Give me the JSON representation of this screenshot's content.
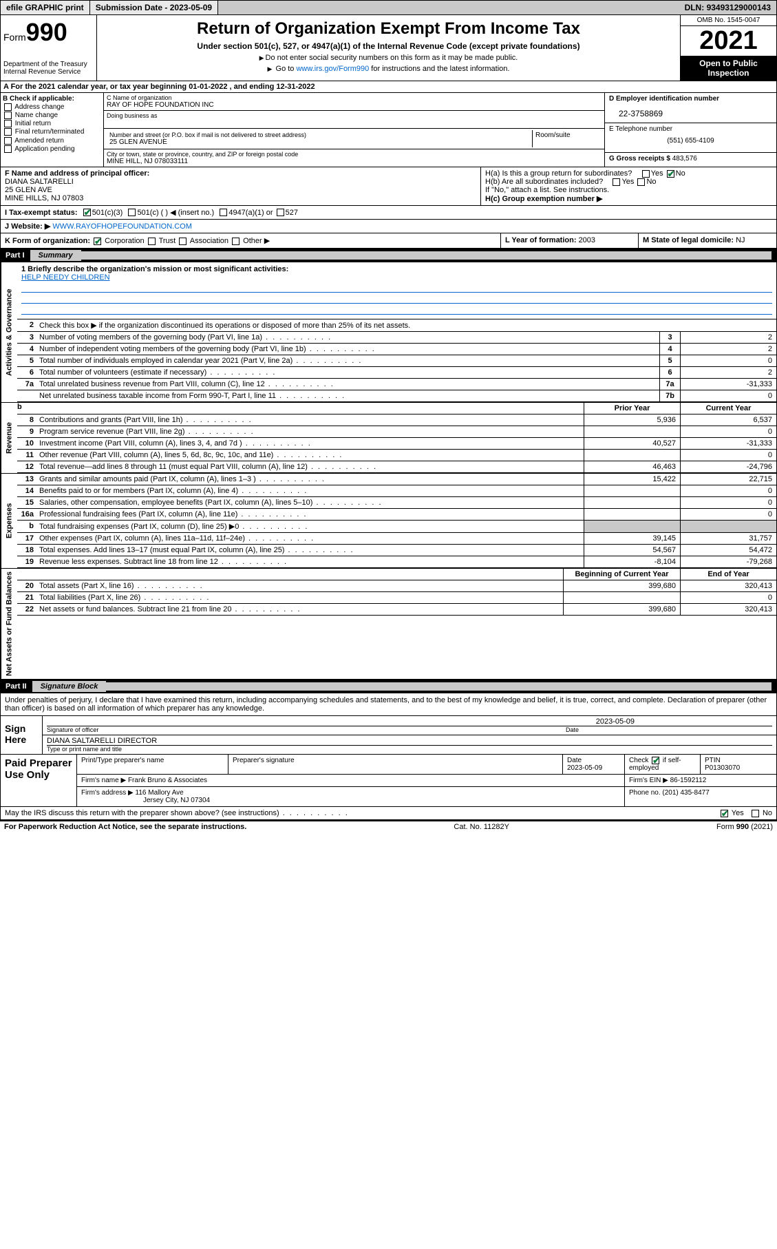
{
  "topbar": {
    "efile": "efile GRAPHIC print",
    "submission_label": "Submission Date - ",
    "submission_date": "2023-05-09",
    "dln_label": "DLN: ",
    "dln": "93493129000143"
  },
  "header": {
    "form_label": "Form",
    "form_num": "990",
    "dept": "Department of the Treasury\nInternal Revenue Service",
    "title": "Return of Organization Exempt From Income Tax",
    "sub": "Under section 501(c), 527, or 4947(a)(1) of the Internal Revenue Code (except private foundations)",
    "l2": "Do not enter social security numbers on this form as it may be made public.",
    "l3_pre": "Go to ",
    "l3_link": "www.irs.gov/Form990",
    "l3_post": " for instructions and the latest information.",
    "omb": "OMB No. 1545-0047",
    "year": "2021",
    "inspect": "Open to Public Inspection"
  },
  "section_a": {
    "text": "A For the 2021 calendar year, or tax year beginning 01-01-2022   , and ending 12-31-2022"
  },
  "col_b": {
    "head": "B Check if applicable:",
    "opts": [
      "Address change",
      "Name change",
      "Initial return",
      "Final return/terminated",
      "Amended return",
      "Application pending"
    ]
  },
  "col_c": {
    "name_label": "C Name of organization",
    "name": "RAY OF HOPE FOUNDATION INC",
    "dba_label": "Doing business as",
    "addr_label": "Number and street (or P.O. box if mail is not delivered to street address)",
    "room_label": "Room/suite",
    "addr": "25 GLEN AVENUE",
    "city_label": "City or town, state or province, country, and ZIP or foreign postal code",
    "city": "MINE HILL, NJ  078033111"
  },
  "col_d": {
    "ein_label": "D Employer identification number",
    "ein": "22-3758869",
    "tel_label": "E Telephone number",
    "tel": "(551) 655-4109",
    "gross_label": "G Gross receipts $ ",
    "gross": "483,576"
  },
  "row_f": {
    "label": "F Name and address of principal officer:",
    "name": "DIANA SALTARELLI",
    "addr1": "25 GLEN AVE",
    "addr2": "MINE HILLS, NJ  07803"
  },
  "row_h": {
    "ha": "H(a)  Is this a group return for subordinates?",
    "ha_yes": "Yes",
    "ha_no": "No",
    "hb": "H(b)  Are all subordinates included?",
    "hb_yes": "Yes",
    "hb_no": "No",
    "hb_note": "If \"No,\" attach a list. See instructions.",
    "hc": "H(c)  Group exemption number ▶"
  },
  "row_i": {
    "label": "I   Tax-exempt status:",
    "o1": "501(c)(3)",
    "o2": "501(c) (  ) ◀ (insert no.)",
    "o3": "4947(a)(1) or",
    "o4": "527"
  },
  "row_j": {
    "label": "J   Website: ▶ ",
    "url": "WWW.RAYOFHOPEFOUNDATION.COM"
  },
  "row_k": {
    "label": "K Form of organization:",
    "o1": "Corporation",
    "o2": "Trust",
    "o3": "Association",
    "o4": "Other ▶"
  },
  "row_l": {
    "label": "L Year of formation: ",
    "val": "2003"
  },
  "row_m": {
    "label": "M State of legal domicile: ",
    "val": "NJ"
  },
  "part1": {
    "label": "Part I",
    "title": "Summary"
  },
  "mission": {
    "q": "1   Briefly describe the organization's mission or most significant activities:",
    "text": "HELP NEEDY CHILDREN"
  },
  "vlabels": {
    "gov": "Activities & Governance",
    "rev": "Revenue",
    "exp": "Expenses",
    "net": "Net Assets or Fund Balances"
  },
  "gov_lines": {
    "l2": "Check this box ▶     if the organization discontinued its operations or disposed of more than 25% of its net assets.",
    "l3": "Number of voting members of the governing body (Part VI, line 1a)",
    "l4": "Number of independent voting members of the governing body (Part VI, line 1b)",
    "l5": "Total number of individuals employed in calendar year 2021 (Part V, line 2a)",
    "l6": "Total number of volunteers (estimate if necessary)",
    "l7a": "Total unrelated business revenue from Part VIII, column (C), line 12",
    "l7b": "Net unrelated business taxable income from Form 990-T, Part I, line 11",
    "v3": "2",
    "v4": "2",
    "v5": "0",
    "v6": "2",
    "v7a": "-31,333",
    "v7b": "0"
  },
  "colhead": {
    "b": "b",
    "prior": "Prior Year",
    "curr": "Current Year",
    "beg": "Beginning of Current Year",
    "end": "End of Year"
  },
  "rev_lines": [
    {
      "n": "8",
      "d": "Contributions and grants (Part VIII, line 1h)",
      "p": "5,936",
      "c": "6,537"
    },
    {
      "n": "9",
      "d": "Program service revenue (Part VIII, line 2g)",
      "p": "",
      "c": "0"
    },
    {
      "n": "10",
      "d": "Investment income (Part VIII, column (A), lines 3, 4, and 7d )",
      "p": "40,527",
      "c": "-31,333"
    },
    {
      "n": "11",
      "d": "Other revenue (Part VIII, column (A), lines 5, 6d, 8c, 9c, 10c, and 11e)",
      "p": "",
      "c": "0"
    },
    {
      "n": "12",
      "d": "Total revenue—add lines 8 through 11 (must equal Part VIII, column (A), line 12)",
      "p": "46,463",
      "c": "-24,796"
    }
  ],
  "exp_lines": [
    {
      "n": "13",
      "d": "Grants and similar amounts paid (Part IX, column (A), lines 1–3 )",
      "p": "15,422",
      "c": "22,715"
    },
    {
      "n": "14",
      "d": "Benefits paid to or for members (Part IX, column (A), line 4)",
      "p": "",
      "c": "0"
    },
    {
      "n": "15",
      "d": "Salaries, other compensation, employee benefits (Part IX, column (A), lines 5–10)",
      "p": "",
      "c": "0"
    },
    {
      "n": "16a",
      "d": "Professional fundraising fees (Part IX, column (A), line 11e)",
      "p": "",
      "c": "0"
    },
    {
      "n": "b",
      "d": "Total fundraising expenses (Part IX, column (D), line 25) ▶0",
      "p": "SHADE",
      "c": "SHADE"
    },
    {
      "n": "17",
      "d": "Other expenses (Part IX, column (A), lines 11a–11d, 11f–24e)",
      "p": "39,145",
      "c": "31,757"
    },
    {
      "n": "18",
      "d": "Total expenses. Add lines 13–17 (must equal Part IX, column (A), line 25)",
      "p": "54,567",
      "c": "54,472"
    },
    {
      "n": "19",
      "d": "Revenue less expenses. Subtract line 18 from line 12",
      "p": "-8,104",
      "c": "-79,268"
    }
  ],
  "net_lines": [
    {
      "n": "20",
      "d": "Total assets (Part X, line 16)",
      "p": "399,680",
      "c": "320,413"
    },
    {
      "n": "21",
      "d": "Total liabilities (Part X, line 26)",
      "p": "",
      "c": "0"
    },
    {
      "n": "22",
      "d": "Net assets or fund balances. Subtract line 21 from line 20",
      "p": "399,680",
      "c": "320,413"
    }
  ],
  "part2": {
    "label": "Part II",
    "title": "Signature Block"
  },
  "sig": {
    "decl": "Under penalties of perjury, I declare that I have examined this return, including accompanying schedules and statements, and to the best of my knowledge and belief, it is true, correct, and complete. Declaration of preparer (other than officer) is based on all information of which preparer has any knowledge.",
    "sign_here": "Sign Here",
    "sig_officer": "Signature of officer",
    "date": "Date",
    "date_val": "2023-05-09",
    "name": "DIANA SALTARELLI  DIRECTOR",
    "name_sub": "Type or print name and title"
  },
  "paid": {
    "label": "Paid Preparer Use Only",
    "h1": "Print/Type preparer's name",
    "h2": "Preparer's signature",
    "h3": "Date",
    "h3v": "2023-05-09",
    "h4": "Check",
    "h4b": "if self-employed",
    "h5": "PTIN",
    "h5v": "P01303070",
    "firm_name_l": "Firm's name    ▶ ",
    "firm_name": "Frank Bruno & Associates",
    "firm_ein_l": "Firm's EIN ▶ ",
    "firm_ein": "86-1592112",
    "firm_addr_l": "Firm's address ▶ ",
    "firm_addr1": "116 Mallory Ave",
    "firm_addr2": "Jersey City, NJ  07304",
    "phone_l": "Phone no. ",
    "phone": "(201) 435-8477"
  },
  "discuss": {
    "q": "May the IRS discuss this return with the preparer shown above? (see instructions)",
    "yes": "Yes",
    "no": "No"
  },
  "footer": {
    "l": "For Paperwork Reduction Act Notice, see the separate instructions.",
    "m": "Cat. No. 11282Y",
    "r": "Form 990 (2021)"
  }
}
